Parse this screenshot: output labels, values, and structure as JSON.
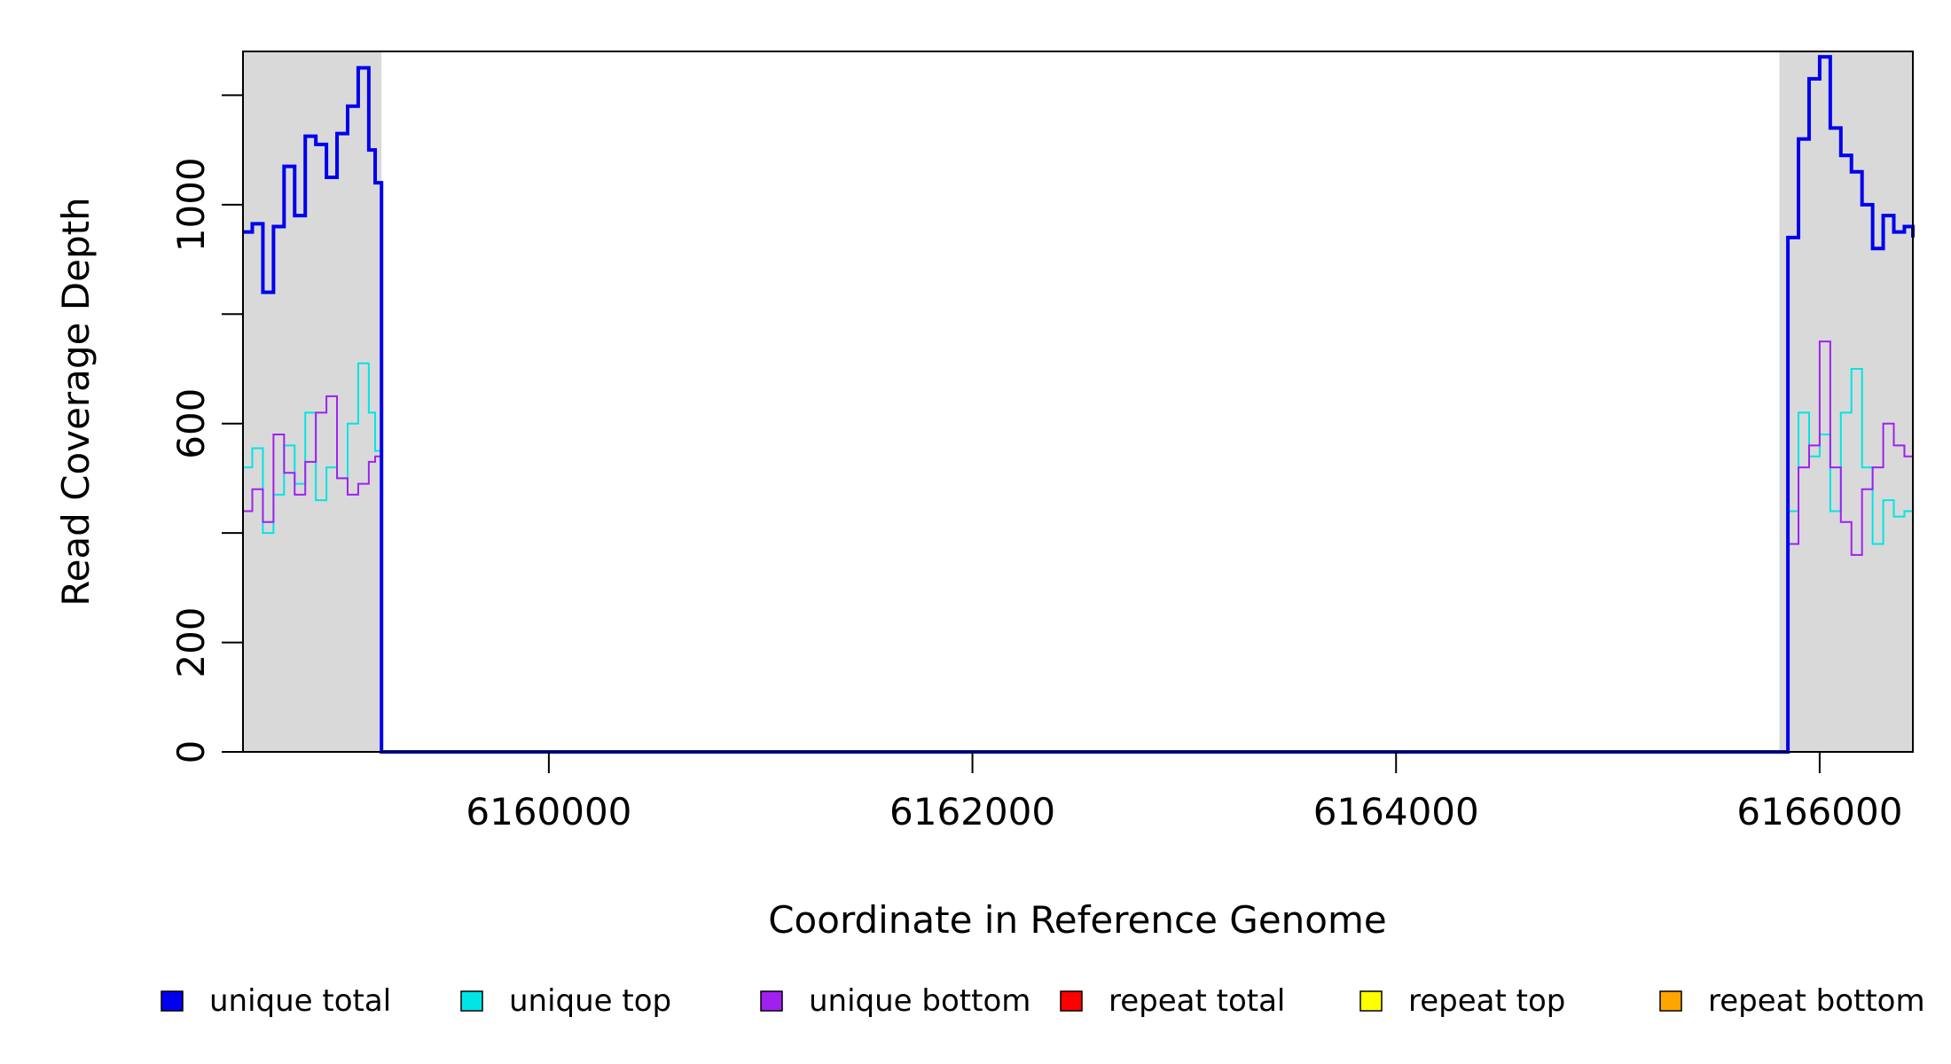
{
  "chart_data": {
    "type": "line",
    "title": "",
    "xlabel": "Coordinate in Reference Genome",
    "ylabel": "Read Coverage Depth",
    "xlim": [
      6158556,
      6166440
    ],
    "ylim": [
      0,
      1280
    ],
    "xticks": [
      6160000,
      6162000,
      6164000,
      6166000
    ],
    "yticks": [
      0,
      200,
      400,
      600,
      800,
      1000,
      1200
    ],
    "ytick_labels": [
      "0",
      "200",
      "",
      "600",
      "",
      "1000",
      ""
    ],
    "shaded_regions": [
      {
        "x0": 6158556,
        "x1": 6159210,
        "color": "#d9d9d9"
      },
      {
        "x0": 6165810,
        "x1": 6166440,
        "color": "#d9d9d9"
      }
    ],
    "series": [
      {
        "name": "unique total",
        "color": "#0000ee",
        "x": [
          6158556,
          6158600,
          6158650,
          6158700,
          6158750,
          6158800,
          6158850,
          6158900,
          6158950,
          6159000,
          6159050,
          6159100,
          6159150,
          6159180,
          6159210,
          6165810,
          6165850,
          6165900,
          6165950,
          6166000,
          6166050,
          6166100,
          6166150,
          6166200,
          6166250,
          6166300,
          6166350,
          6166400,
          6166440
        ],
        "values": [
          950,
          965,
          840,
          960,
          1070,
          980,
          1125,
          1110,
          1050,
          1130,
          1180,
          1250,
          1100,
          1040,
          0,
          0,
          940,
          1120,
          1230,
          1270,
          1140,
          1090,
          1060,
          1000,
          920,
          980,
          950,
          960,
          940
        ]
      },
      {
        "name": "unique top",
        "color": "#00e5e5",
        "x": [
          6158556,
          6158600,
          6158650,
          6158700,
          6158750,
          6158800,
          6158850,
          6158900,
          6158950,
          6159000,
          6159050,
          6159100,
          6159150,
          6159180,
          6159210,
          6165810,
          6165850,
          6165900,
          6165950,
          6166000,
          6166050,
          6166100,
          6166150,
          6166200,
          6166250,
          6166300,
          6166350,
          6166400,
          6166440
        ],
        "values": [
          520,
          555,
          400,
          470,
          560,
          490,
          620,
          460,
          520,
          500,
          600,
          710,
          620,
          550,
          0,
          0,
          440,
          620,
          540,
          580,
          440,
          620,
          700,
          520,
          380,
          460,
          430,
          440,
          450
        ]
      },
      {
        "name": "unique bottom",
        "color": "#a020f0",
        "x": [
          6158556,
          6158600,
          6158650,
          6158700,
          6158750,
          6158800,
          6158850,
          6158900,
          6158950,
          6159000,
          6159050,
          6159100,
          6159150,
          6159180,
          6159210,
          6165810,
          6165850,
          6165900,
          6165950,
          6166000,
          6166050,
          6166100,
          6166150,
          6166200,
          6166250,
          6166300,
          6166350,
          6166400,
          6166440
        ],
        "values": [
          440,
          480,
          420,
          580,
          510,
          470,
          530,
          620,
          650,
          500,
          470,
          490,
          530,
          540,
          0,
          0,
          380,
          520,
          560,
          750,
          520,
          420,
          360,
          480,
          520,
          600,
          560,
          540,
          510
        ]
      },
      {
        "name": "repeat total",
        "color": "#ff0000",
        "x": [
          6158556,
          6166440
        ],
        "values": [
          0,
          0
        ]
      },
      {
        "name": "repeat top",
        "color": "#ffff00",
        "x": [
          6158556,
          6166440
        ],
        "values": [
          0,
          0
        ]
      },
      {
        "name": "repeat bottom",
        "color": "#ffa500",
        "x": [
          6158556,
          6166440
        ],
        "values": [
          0,
          0
        ]
      }
    ],
    "legend": {
      "placement": "bottom",
      "items": [
        {
          "label": "unique total",
          "color": "#0000ee"
        },
        {
          "label": "unique top",
          "color": "#00e5e5"
        },
        {
          "label": "unique bottom",
          "color": "#a020f0"
        },
        {
          "label": "repeat total",
          "color": "#ff0000"
        },
        {
          "label": "repeat top",
          "color": "#ffff00"
        },
        {
          "label": "repeat bottom",
          "color": "#ffa500"
        }
      ]
    }
  }
}
